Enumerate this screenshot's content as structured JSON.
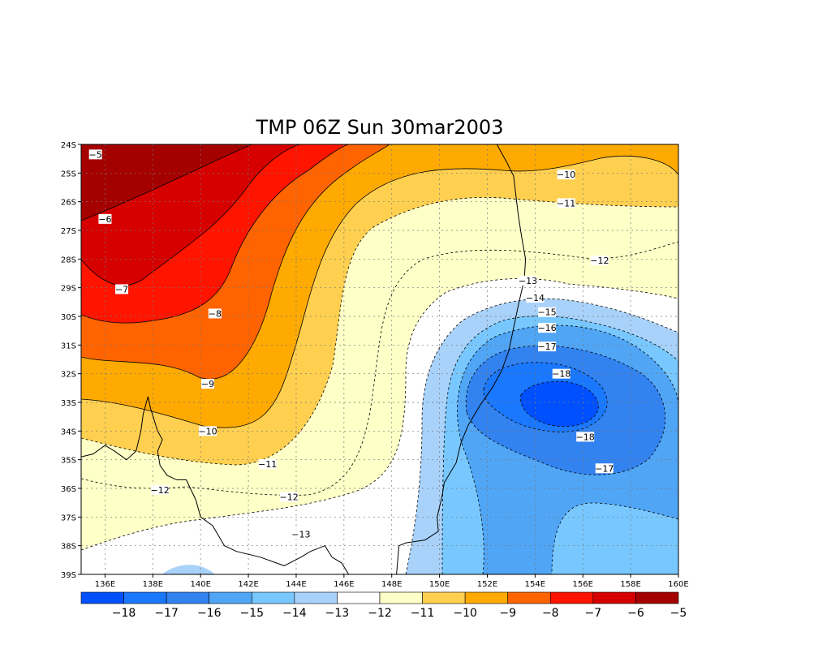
{
  "title": "TMP 06Z Sun 30mar2003",
  "chart_data": {
    "type": "heatmap",
    "title": "TMP 06Z Sun 30mar2003",
    "variable": "TMP",
    "xaxis": {
      "range": [
        135,
        160
      ],
      "ticks": [
        {
          "v": 136,
          "label": "136E"
        },
        {
          "v": 138,
          "label": "138E"
        },
        {
          "v": 140,
          "label": "140E"
        },
        {
          "v": 142,
          "label": "142E"
        },
        {
          "v": 144,
          "label": "144E"
        },
        {
          "v": 146,
          "label": "146E"
        },
        {
          "v": 148,
          "label": "148E"
        },
        {
          "v": 150,
          "label": "150E"
        },
        {
          "v": 152,
          "label": "152E"
        },
        {
          "v": 154,
          "label": "154E"
        },
        {
          "v": 156,
          "label": "156E"
        },
        {
          "v": 158,
          "label": "158E"
        },
        {
          "v": 160,
          "label": "160E"
        }
      ]
    },
    "yaxis": {
      "range": [
        -39,
        -24
      ],
      "ticks": [
        {
          "v": -24,
          "label": "24S"
        },
        {
          "v": -25,
          "label": "25S"
        },
        {
          "v": -26,
          "label": "26S"
        },
        {
          "v": -27,
          "label": "27S"
        },
        {
          "v": -28,
          "label": "28S"
        },
        {
          "v": -29,
          "label": "29S"
        },
        {
          "v": -30,
          "label": "30S"
        },
        {
          "v": -31,
          "label": "31S"
        },
        {
          "v": -32,
          "label": "32S"
        },
        {
          "v": -33,
          "label": "33S"
        },
        {
          "v": -34,
          "label": "34S"
        },
        {
          "v": -35,
          "label": "35S"
        },
        {
          "v": -36,
          "label": "36S"
        },
        {
          "v": -37,
          "label": "37S"
        },
        {
          "v": -38,
          "label": "38S"
        },
        {
          "v": -39,
          "label": "39S"
        }
      ]
    },
    "grid": true,
    "colorbar": {
      "colors": [
        "#0050ff",
        "#1a78ff",
        "#3282f0",
        "#50a5f5",
        "#78c8ff",
        "#a9d2fa",
        "#ffffff",
        "#ffffc8",
        "#ffd050",
        "#ffaa00",
        "#ff6400",
        "#ff1400",
        "#d70000",
        "#a50000"
      ],
      "labels": [
        "-18",
        "-17",
        "-16",
        "-15",
        "-14",
        "-13",
        "-12",
        "-11",
        "-10",
        "-9",
        "-8",
        "-7",
        "-6",
        "-5"
      ]
    },
    "contour_labels": [
      {
        "text": "-5",
        "lon": 135.6,
        "lat": -24.35
      },
      {
        "text": "-6",
        "lon": 136.0,
        "lat": -26.6
      },
      {
        "text": "-7",
        "lon": 136.7,
        "lat": -29.05
      },
      {
        "text": "-8",
        "lon": 140.6,
        "lat": -29.9
      },
      {
        "text": "-9",
        "lon": 140.3,
        "lat": -32.35
      },
      {
        "text": "-10",
        "lon": 140.3,
        "lat": -34.0
      },
      {
        "text": "-11",
        "lon": 142.8,
        "lat": -35.15
      },
      {
        "text": "-12",
        "lon": 138.3,
        "lat": -36.05
      },
      {
        "text": "-12",
        "lon": 143.7,
        "lat": -36.3
      },
      {
        "text": "-13",
        "lon": 144.2,
        "lat": -37.6
      },
      {
        "text": "-10",
        "lon": 155.3,
        "lat": -25.05
      },
      {
        "text": "-11",
        "lon": 155.3,
        "lat": -26.05
      },
      {
        "text": "-12",
        "lon": 156.7,
        "lat": -28.05
      },
      {
        "text": "-13",
        "lon": 153.7,
        "lat": -28.75
      },
      {
        "text": "-14",
        "lon": 154.0,
        "lat": -29.35
      },
      {
        "text": "-15",
        "lon": 154.5,
        "lat": -29.85
      },
      {
        "text": "-16",
        "lon": 154.5,
        "lat": -30.4
      },
      {
        "text": "-17",
        "lon": 154.5,
        "lat": -31.05
      },
      {
        "text": "-18",
        "lon": 155.1,
        "lat": -32.0
      },
      {
        "text": "-18",
        "lon": 156.1,
        "lat": -34.2
      },
      {
        "text": "-17",
        "lon": 156.9,
        "lat": -35.3
      }
    ],
    "coastline": [
      [
        [
          152.4,
          -24.0
        ],
        [
          152.8,
          -24.6
        ],
        [
          153.1,
          -25.1
        ],
        [
          153.2,
          -25.8
        ],
        [
          153.3,
          -26.5
        ],
        [
          153.45,
          -27.3
        ],
        [
          153.6,
          -28.0
        ],
        [
          153.55,
          -28.7
        ],
        [
          153.3,
          -29.6
        ],
        [
          153.1,
          -30.4
        ],
        [
          152.9,
          -31.2
        ],
        [
          152.6,
          -31.9
        ],
        [
          152.2,
          -32.5
        ],
        [
          151.7,
          -33.1
        ],
        [
          151.2,
          -33.8
        ],
        [
          150.9,
          -34.4
        ],
        [
          150.7,
          -35.1
        ],
        [
          150.2,
          -35.8
        ],
        [
          150.1,
          -36.3
        ],
        [
          149.9,
          -37.0
        ],
        [
          149.95,
          -37.5
        ],
        [
          149.4,
          -37.8
        ],
        [
          148.6,
          -37.9
        ],
        [
          148.3,
          -38.0
        ],
        [
          148.2,
          -39.0
        ]
      ],
      [
        [
          146.2,
          -39.0
        ],
        [
          145.9,
          -38.6
        ],
        [
          145.5,
          -38.4
        ],
        [
          145.2,
          -38.0
        ],
        [
          144.6,
          -38.2
        ],
        [
          144.2,
          -38.4
        ],
        [
          143.5,
          -38.7
        ],
        [
          142.5,
          -38.4
        ],
        [
          141.5,
          -38.2
        ],
        [
          141.0,
          -38.0
        ],
        [
          140.5,
          -37.3
        ],
        [
          140.0,
          -37.0
        ],
        [
          139.8,
          -36.4
        ],
        [
          139.4,
          -35.7
        ],
        [
          139.0,
          -35.7
        ],
        [
          138.6,
          -35.55
        ],
        [
          138.3,
          -35.2
        ],
        [
          138.2,
          -34.7
        ],
        [
          138.4,
          -34.3
        ],
        [
          138.2,
          -34.0
        ],
        [
          137.9,
          -33.2
        ],
        [
          137.8,
          -32.8
        ],
        [
          137.6,
          -33.4
        ],
        [
          137.5,
          -34.0
        ],
        [
          137.3,
          -34.7
        ],
        [
          136.9,
          -35.0
        ],
        [
          136.4,
          -34.7
        ],
        [
          136.0,
          -34.5
        ],
        [
          135.5,
          -34.8
        ],
        [
          135.0,
          -34.9
        ]
      ]
    ]
  }
}
